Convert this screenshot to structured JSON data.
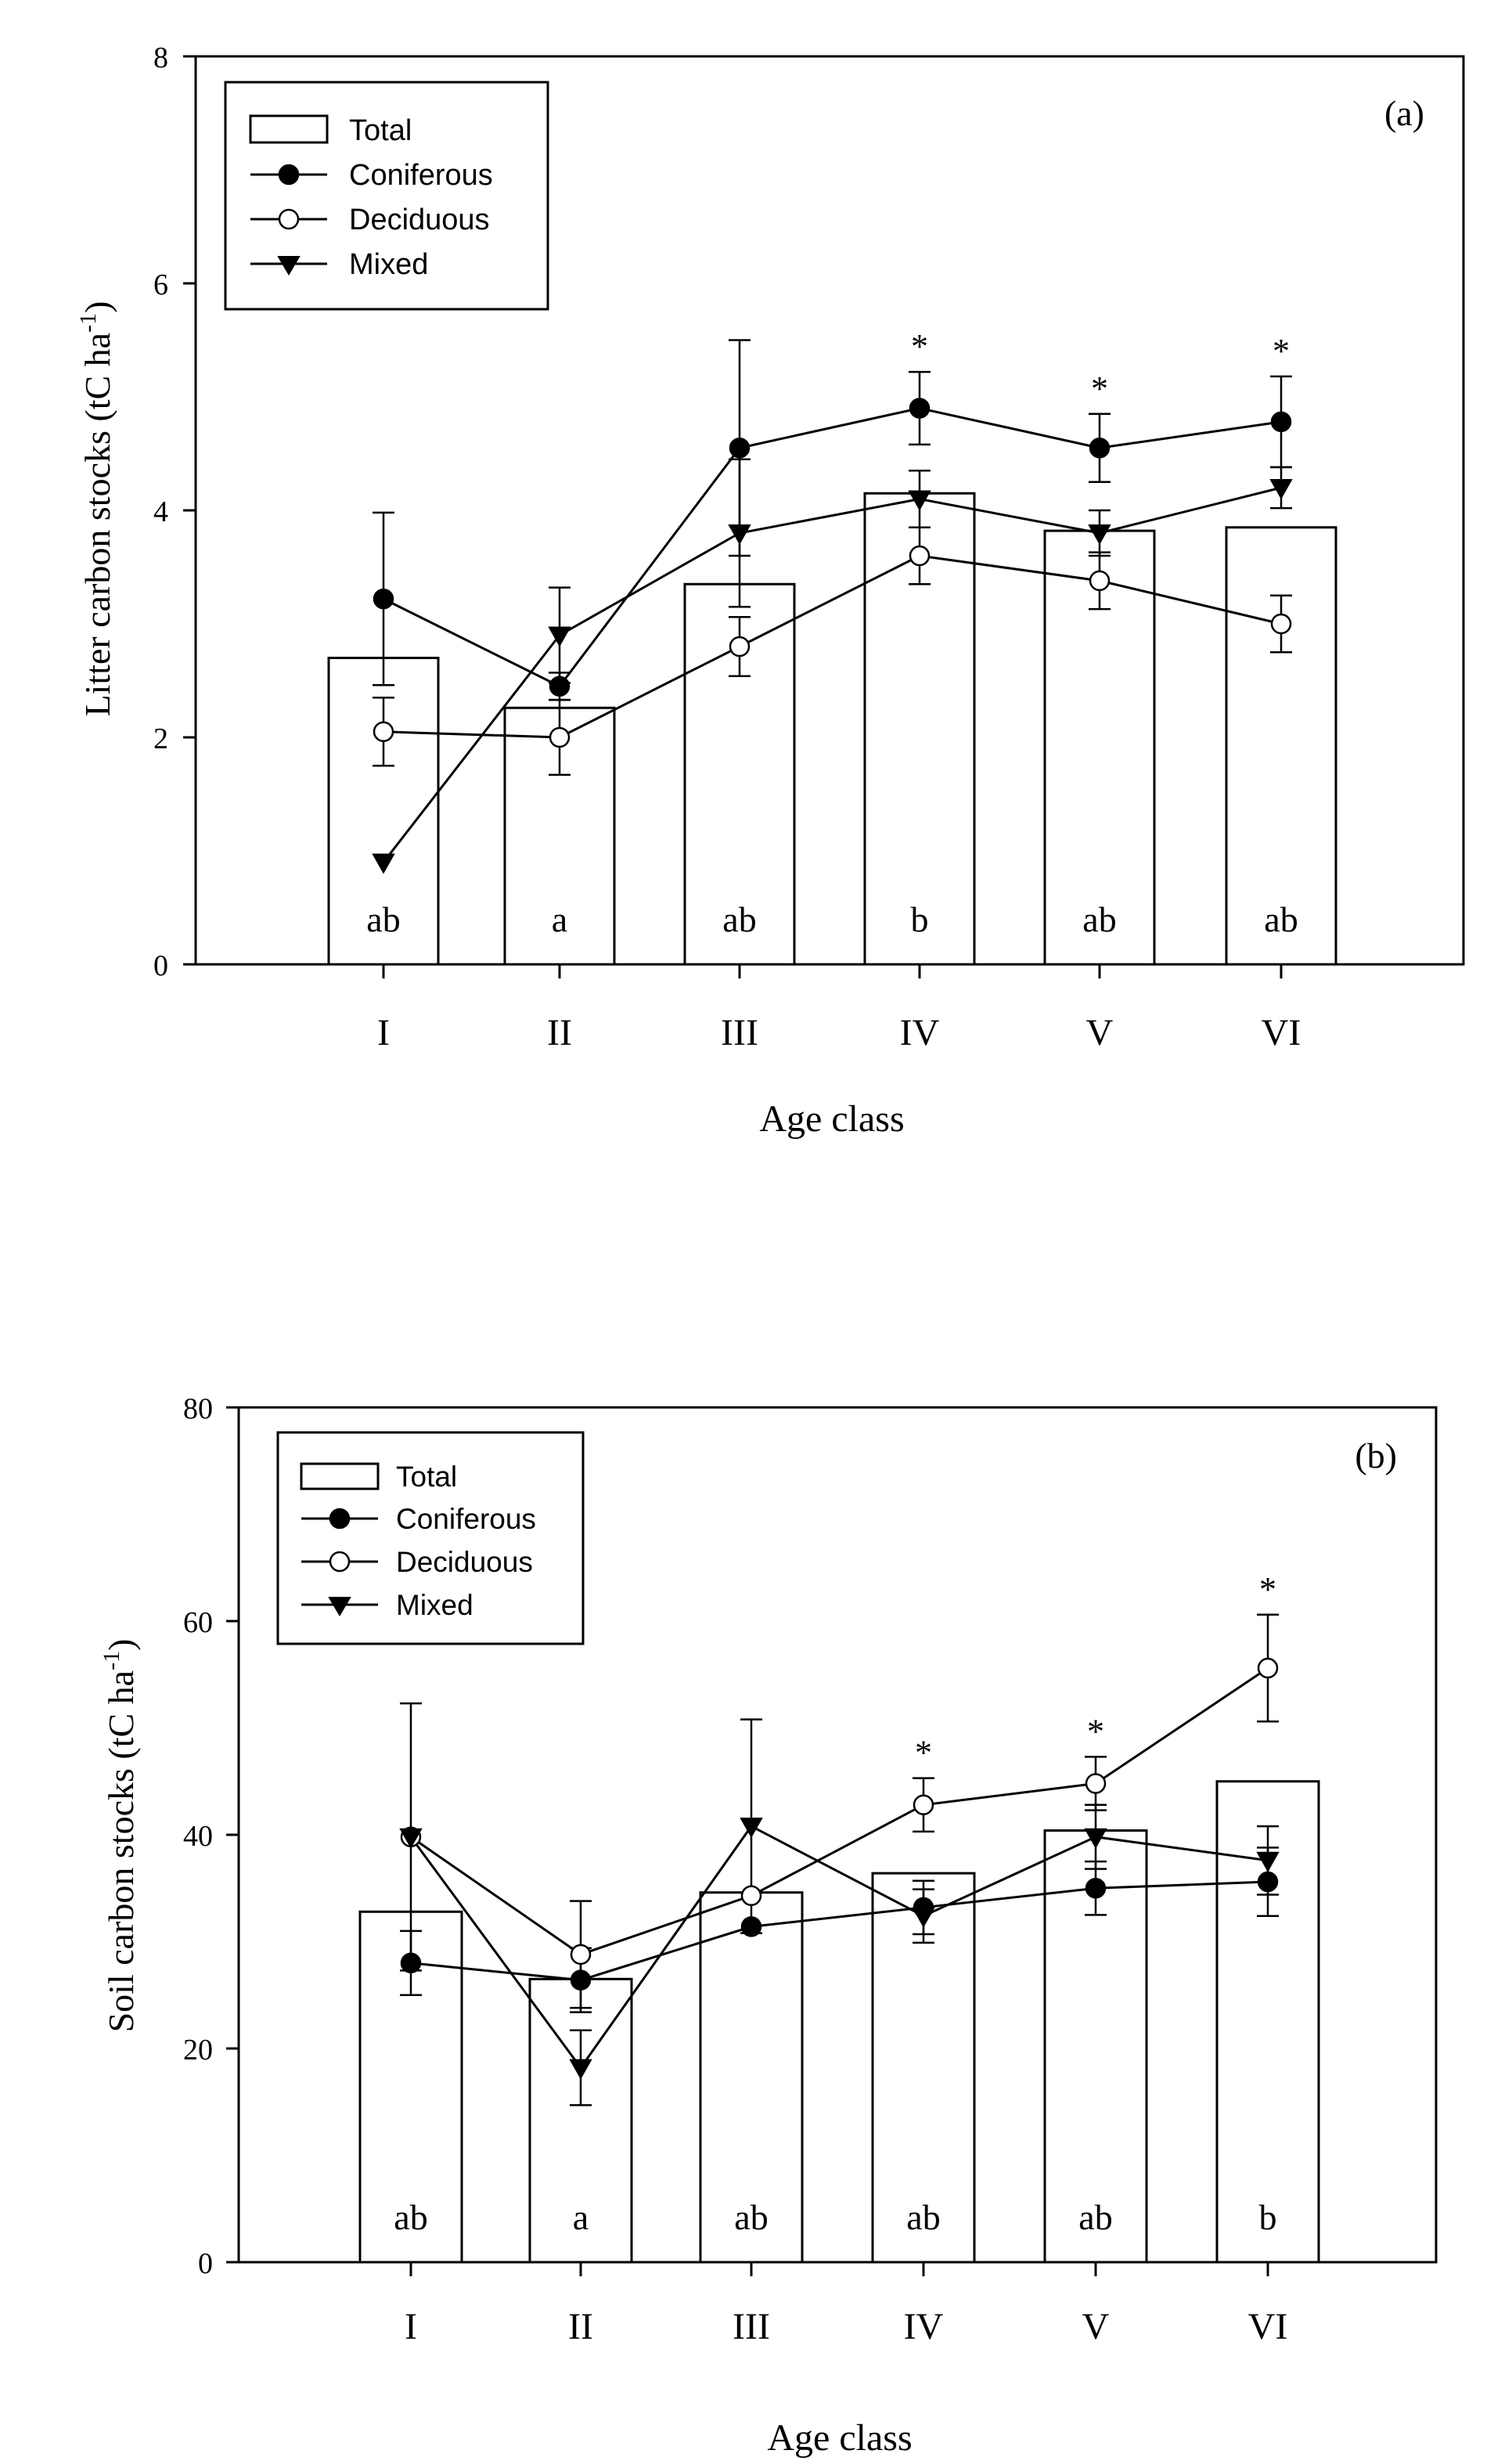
{
  "chart_data": [
    {
      "type": "bar",
      "panel_label": "(a)",
      "xlabel": "Age class",
      "ylabel": "Litter carbon stocks (tC ha",
      "ylabel_sup": "-1",
      "ylabel_close": ")",
      "ylim": [
        0,
        8
      ],
      "yticks": [
        "0",
        "2",
        "4",
        "6",
        "8"
      ],
      "categories": [
        "I",
        "II",
        "III",
        "IV",
        "V",
        "VI"
      ],
      "legend": {
        "position": "top-left",
        "entries": [
          "Total",
          "Coniferous",
          "Deciduous",
          "Mixed"
        ]
      },
      "bars": {
        "name": "Total",
        "values": [
          2.7,
          2.26,
          3.35,
          4.15,
          3.82,
          3.85
        ],
        "letters": [
          "ab",
          "a",
          "ab",
          "b",
          "ab",
          "ab"
        ]
      },
      "series": [
        {
          "name": "Coniferous",
          "marker": "filled-circle",
          "values": [
            3.22,
            2.45,
            4.55,
            4.9,
            4.55,
            4.78
          ],
          "errors": [
            0.76,
            0.12,
            0.95,
            0.32,
            0.3,
            0.4
          ]
        },
        {
          "name": "Deciduous",
          "marker": "open-circle",
          "values": [
            2.05,
            2.0,
            2.8,
            3.6,
            3.38,
            3.0
          ],
          "errors": [
            0.3,
            0.33,
            0.26,
            0.25,
            0.25,
            0.25
          ]
        },
        {
          "name": "Mixed",
          "marker": "filled-triangle-down",
          "values": [
            0.9,
            2.9,
            3.8,
            4.1,
            3.8,
            4.2
          ],
          "errors": [
            0,
            0.42,
            0.65,
            0.25,
            0.2,
            0.18
          ]
        }
      ],
      "significance": {
        "symbol": "*",
        "positions": [
          3,
          4,
          5
        ]
      }
    },
    {
      "type": "bar",
      "panel_label": "(b)",
      "xlabel": "Age class",
      "ylabel": "Soil carbon stocks (tC ha",
      "ylabel_sup": "-1",
      "ylabel_close": ")",
      "ylim": [
        0,
        80
      ],
      "yticks": [
        "0",
        "20",
        "40",
        "60",
        "80"
      ],
      "categories": [
        "I",
        "II",
        "III",
        "IV",
        "V",
        "VI"
      ],
      "legend": {
        "position": "top-left",
        "entries": [
          "Total",
          "Coniferous",
          "Deciduous",
          "Mixed"
        ]
      },
      "bars": {
        "name": "Total",
        "values": [
          32.8,
          26.5,
          34.6,
          36.4,
          40.4,
          45.0
        ],
        "letters": [
          "ab",
          "a",
          "ab",
          "ab",
          "ab",
          "b"
        ]
      },
      "series": [
        {
          "name": "Coniferous",
          "marker": "filled-circle",
          "values": [
            28.0,
            26.4,
            31.4,
            33.2,
            35.0,
            35.6
          ],
          "errors": [
            3.0,
            3.0,
            0,
            2.5,
            2.5,
            3.2
          ]
        },
        {
          "name": "Deciduous",
          "marker": "open-circle",
          "values": [
            39.8,
            28.8,
            34.3,
            42.8,
            44.8,
            55.6
          ],
          "errors": [
            0,
            5.0,
            0,
            2.5,
            2.5,
            5.0
          ]
        },
        {
          "name": "Mixed",
          "marker": "filled-triangle-down",
          "values": [
            39.8,
            18.2,
            40.8,
            32.4,
            39.8,
            37.6
          ],
          "errors": [
            12.5,
            3.5,
            10.0,
            2.5,
            3.0,
            3.2
          ]
        }
      ],
      "significance": {
        "symbol": "*",
        "positions": [
          3,
          4,
          5
        ]
      }
    }
  ]
}
